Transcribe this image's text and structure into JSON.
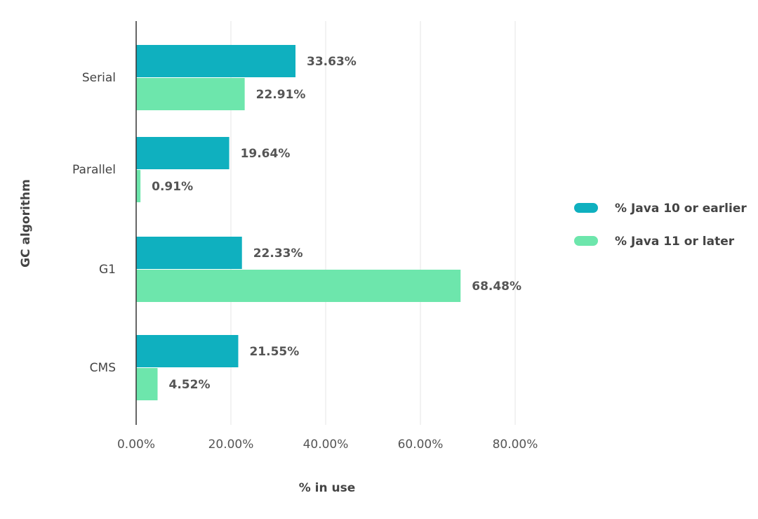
{
  "chart_data": {
    "type": "bar",
    "orientation": "horizontal",
    "categories": [
      "Serial",
      "Parallel",
      "G1",
      "CMS"
    ],
    "series": [
      {
        "name": "% Java 10 or earlier",
        "values": [
          33.63,
          19.64,
          22.33,
          21.55
        ],
        "color": "#0fb0bf"
      },
      {
        "name": "% Java 11 or later",
        "values": [
          22.91,
          0.91,
          68.48,
          4.52
        ],
        "color": "#6de6ac"
      }
    ],
    "data_labels": [
      [
        "33.63%",
        "19.64%",
        "22.33%",
        "21.55%"
      ],
      [
        "22.91%",
        "0.91%",
        "68.48%",
        "4.52%"
      ]
    ],
    "xlabel": "% in use",
    "ylabel": "GC algorithm",
    "xlim": [
      0,
      80
    ],
    "xticks": [
      0,
      20,
      40,
      60,
      80
    ],
    "xtick_labels": [
      "0.00%",
      "20.00%",
      "40.00%",
      "60.00%",
      "80.00%"
    ],
    "grid": true,
    "legend_position": "right"
  }
}
